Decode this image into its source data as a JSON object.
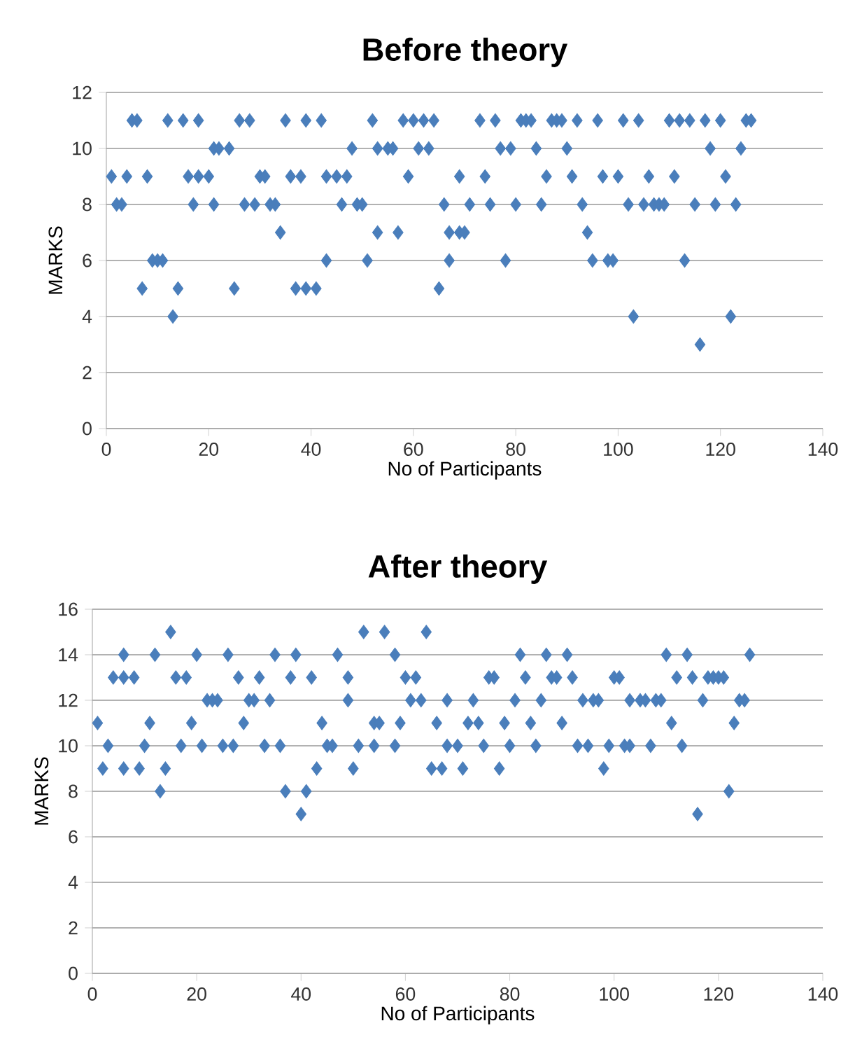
{
  "chart_data": [
    {
      "type": "scatter",
      "title": "Before theory",
      "xlabel": "No of Participants",
      "ylabel": "MARKS",
      "marker": "diamond",
      "grid": "y",
      "xlim": [
        0,
        140
      ],
      "ylim": [
        0,
        12
      ],
      "xticks": [
        0,
        20,
        40,
        60,
        80,
        100,
        120,
        140
      ],
      "yticks": [
        0,
        2,
        4,
        6,
        8,
        10,
        12
      ],
      "series": [
        {
          "color": "#4a7ebb",
          "x": [
            1,
            2,
            3,
            4,
            5,
            6,
            7,
            8,
            9,
            10,
            11,
            12,
            13,
            14,
            15,
            16,
            17,
            18,
            18,
            20,
            21,
            21,
            22,
            24,
            25,
            26,
            27,
            28,
            29,
            30,
            31,
            32,
            33,
            34,
            35,
            36,
            37,
            38,
            39,
            39,
            41,
            42,
            43,
            43,
            45,
            46,
            47,
            48,
            49,
            50,
            51,
            52,
            53,
            53,
            55,
            56,
            57,
            58,
            59,
            60,
            61,
            62,
            63,
            64,
            65,
            66,
            67,
            67,
            69,
            69,
            70,
            71,
            73,
            74,
            75,
            76,
            77,
            78,
            79,
            80,
            81,
            82,
            83,
            84,
            85,
            86,
            87,
            88,
            89,
            90,
            91,
            92,
            93,
            94,
            95,
            96,
            97,
            98,
            99,
            100,
            101,
            102,
            103,
            104,
            105,
            106,
            107,
            108,
            109,
            110,
            111,
            112,
            113,
            114,
            115,
            116,
            117,
            118,
            119,
            120,
            121,
            122,
            123,
            124,
            125,
            126
          ],
          "values": [
            9,
            8,
            8,
            9,
            11,
            11,
            5,
            9,
            6,
            6,
            6,
            11,
            4,
            5,
            11,
            9,
            8,
            11,
            9,
            9,
            10,
            8,
            10,
            10,
            5,
            11,
            8,
            11,
            8,
            9,
            9,
            8,
            8,
            7,
            11,
            9,
            5,
            9,
            11,
            5,
            5,
            11,
            9,
            6,
            9,
            8,
            9,
            10,
            8,
            8,
            6,
            11,
            10,
            7,
            10,
            10,
            7,
            11,
            9,
            11,
            10,
            11,
            10,
            11,
            5,
            8,
            6,
            7,
            7,
            9,
            7,
            8,
            11,
            9,
            8,
            11,
            10,
            6,
            10,
            8,
            11,
            11,
            11,
            10,
            8,
            9,
            11,
            11,
            11,
            10,
            9,
            11,
            8,
            7,
            6,
            11,
            9,
            6,
            6,
            9,
            11,
            8,
            4,
            11,
            8,
            9,
            8,
            8,
            8,
            11,
            9,
            11,
            6,
            11,
            8,
            3,
            11,
            10,
            8,
            11,
            9,
            4,
            8,
            10,
            11,
            11
          ]
        }
      ]
    },
    {
      "type": "scatter",
      "title": "After theory",
      "xlabel": "No of Participants",
      "ylabel": "MARKS",
      "marker": "diamond",
      "grid": "y",
      "xlim": [
        0,
        140
      ],
      "ylim": [
        0,
        16
      ],
      "xticks": [
        0,
        20,
        40,
        60,
        80,
        100,
        120,
        140
      ],
      "yticks": [
        0,
        2,
        4,
        6,
        8,
        10,
        12,
        14,
        16
      ],
      "series": [
        {
          "color": "#4a7ebb",
          "x": [
            1,
            2,
            3,
            4,
            6,
            6,
            6,
            8,
            9,
            10,
            11,
            12,
            13,
            14,
            15,
            16,
            17,
            18,
            19,
            20,
            21,
            22,
            23,
            24,
            25,
            26,
            27,
            28,
            29,
            30,
            31,
            32,
            33,
            34,
            35,
            36,
            37,
            38,
            39,
            40,
            41,
            42,
            43,
            44,
            45,
            46,
            47,
            49,
            49,
            50,
            51,
            52,
            54,
            54,
            55,
            56,
            58,
            58,
            59,
            60,
            61,
            62,
            63,
            64,
            65,
            66,
            67,
            68,
            68,
            70,
            71,
            72,
            73,
            74,
            75,
            76,
            77,
            78,
            79,
            80,
            81,
            82,
            83,
            84,
            85,
            86,
            87,
            88,
            89,
            90,
            91,
            92,
            93,
            94,
            95,
            96,
            97,
            98,
            99,
            100,
            101,
            102,
            103,
            103,
            105,
            106,
            107,
            108,
            109,
            110,
            111,
            112,
            113,
            114,
            115,
            116,
            117,
            118,
            119,
            120,
            121,
            122,
            123,
            124,
            125,
            126
          ],
          "values": [
            11,
            9,
            10,
            13,
            14,
            13,
            9,
            13,
            9,
            10,
            11,
            14,
            8,
            9,
            15,
            13,
            10,
            13,
            11,
            14,
            10,
            12,
            12,
            12,
            10,
            14,
            10,
            13,
            11,
            12,
            12,
            13,
            10,
            12,
            14,
            10,
            8,
            13,
            14,
            7,
            8,
            13,
            9,
            11,
            10,
            10,
            14,
            13,
            12,
            9,
            10,
            15,
            11,
            10,
            11,
            15,
            14,
            10,
            11,
            13,
            12,
            13,
            12,
            15,
            9,
            11,
            9,
            12,
            10,
            10,
            9,
            11,
            12,
            11,
            10,
            13,
            13,
            9,
            11,
            10,
            12,
            14,
            13,
            11,
            10,
            12,
            14,
            13,
            13,
            11,
            14,
            13,
            10,
            12,
            10,
            12,
            12,
            9,
            10,
            13,
            13,
            10,
            10,
            12,
            12,
            12,
            10,
            12,
            12,
            14,
            11,
            13,
            10,
            14,
            13,
            7,
            12,
            13,
            13,
            13,
            13,
            8,
            11,
            12,
            12,
            14
          ]
        }
      ]
    }
  ]
}
